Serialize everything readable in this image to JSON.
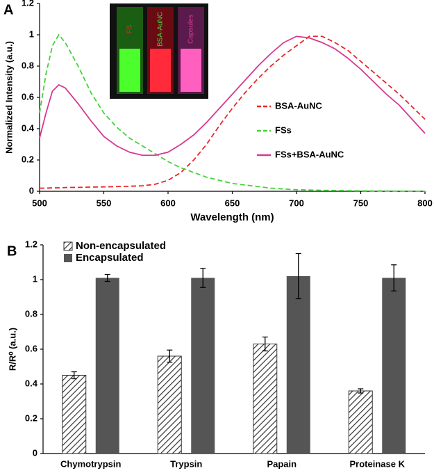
{
  "chart_data": [
    {
      "type": "line",
      "panel_label": "A",
      "xlabel": "Wavelength (nm)",
      "ylabel": "Normalized Intensity (a.u.)",
      "inset_labels": [
        "FS",
        "BSA-AuNC",
        "Capsules"
      ],
      "xlim": [
        500,
        800
      ],
      "xticks": [
        500,
        550,
        600,
        650,
        700,
        750,
        800
      ],
      "ylim": [
        0,
        1.2
      ],
      "yticks": [
        0,
        0.2,
        0.4,
        0.6,
        0.8,
        1,
        1.2
      ],
      "x": [
        500,
        505,
        510,
        515,
        520,
        530,
        540,
        550,
        560,
        570,
        580,
        590,
        600,
        610,
        620,
        630,
        640,
        650,
        660,
        670,
        680,
        690,
        700,
        710,
        720,
        730,
        740,
        750,
        760,
        770,
        780,
        790,
        800
      ],
      "legend": "right",
      "series": [
        {
          "name": "BSA-AuNC",
          "color": "#e8262b",
          "dash": true,
          "values": [
            0.02,
            0.02,
            0.022,
            0.022,
            0.024,
            0.025,
            0.027,
            0.028,
            0.03,
            0.032,
            0.035,
            0.045,
            0.07,
            0.12,
            0.2,
            0.3,
            0.42,
            0.53,
            0.63,
            0.72,
            0.8,
            0.87,
            0.93,
            0.99,
            0.99,
            0.95,
            0.9,
            0.83,
            0.76,
            0.69,
            0.62,
            0.54,
            0.46
          ]
        },
        {
          "name": "FSs",
          "color": "#44d23a",
          "dash": true,
          "values": [
            0.5,
            0.75,
            0.93,
            1.0,
            0.95,
            0.8,
            0.63,
            0.5,
            0.41,
            0.34,
            0.29,
            0.24,
            0.19,
            0.15,
            0.12,
            0.09,
            0.07,
            0.05,
            0.04,
            0.03,
            0.02,
            0.015,
            0.01,
            0.008,
            0.006,
            0.005,
            0.004,
            0.003,
            0.002,
            0.002,
            0.001,
            0.001,
            0
          ]
        },
        {
          "name": "FSs+BSA-AuNC",
          "color": "#d6398f",
          "dash": false,
          "values": [
            0.34,
            0.5,
            0.64,
            0.68,
            0.66,
            0.56,
            0.45,
            0.35,
            0.29,
            0.25,
            0.23,
            0.23,
            0.25,
            0.3,
            0.36,
            0.44,
            0.53,
            0.62,
            0.71,
            0.8,
            0.88,
            0.95,
            0.99,
            0.98,
            0.95,
            0.91,
            0.85,
            0.78,
            0.7,
            0.62,
            0.55,
            0.46,
            0.37
          ]
        }
      ]
    },
    {
      "type": "bar",
      "panel_label": "B",
      "ylabel": "R/R⁰ (a.u.)",
      "categories": [
        "Chymotrypsin",
        "Trypsin",
        "Papain",
        "Proteinase K"
      ],
      "ylim": [
        0,
        1.2
      ],
      "yticks": [
        0,
        0.2,
        0.4,
        0.6,
        0.8,
        1,
        1.2
      ],
      "legend": "upper left",
      "series": [
        {
          "name": "Non-encapsulated",
          "color": "#ffffff",
          "hatch": true,
          "values": [
            0.45,
            0.56,
            0.63,
            0.36
          ],
          "errors": [
            0.02,
            0.035,
            0.04,
            0.012
          ]
        },
        {
          "name": "Encapsulated",
          "color": "#555555",
          "hatch": false,
          "values": [
            1.01,
            1.01,
            1.02,
            1.01
          ],
          "errors": [
            0.02,
            0.055,
            0.13,
            0.075
          ]
        }
      ]
    }
  ]
}
